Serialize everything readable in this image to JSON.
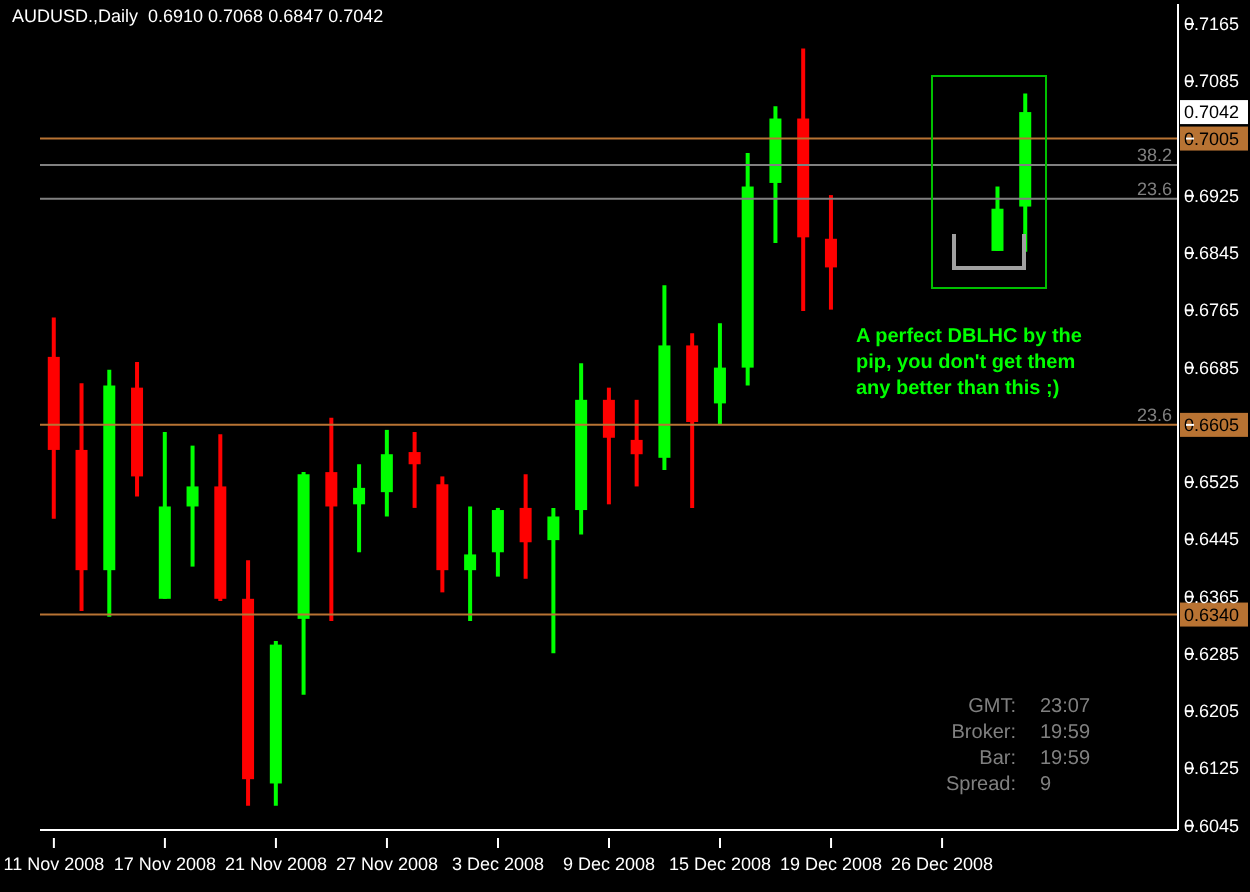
{
  "chart_data": {
    "type": "candlestick",
    "title": "AUDUSD.,Daily  0.6910 0.7068 0.6847 0.7042",
    "categories": [
      "11 Nov 2008",
      null,
      null,
      null,
      "17 Nov 2008",
      null,
      null,
      null,
      "21 Nov 2008",
      null,
      null,
      null,
      "27 Nov 2008",
      null,
      null,
      null,
      "3 Dec 2008",
      null,
      null,
      null,
      "9 Dec 2008",
      null,
      null,
      null,
      "15 Dec 2008",
      null,
      null,
      null,
      "19 Dec 2008",
      null,
      null,
      null,
      "26 Dec 2008",
      null,
      null,
      null,
      null,
      null,
      null,
      null,
      null
    ],
    "ohlc": [
      [
        0.67,
        0.6755,
        0.6474,
        0.657
      ],
      [
        0.657,
        0.6663,
        0.6345,
        0.6402
      ],
      [
        0.6402,
        0.6682,
        0.6337,
        0.666
      ],
      [
        0.6657,
        0.6693,
        0.6505,
        0.6533
      ],
      [
        0.6362,
        0.6595,
        0.6362,
        0.6491
      ],
      [
        0.6491,
        0.6576,
        0.6407,
        0.6519
      ],
      [
        0.6519,
        0.6592,
        0.6359,
        0.6362
      ],
      [
        0.6362,
        0.6416,
        0.6073,
        0.611
      ],
      [
        0.6104,
        0.6303,
        0.6073,
        0.6298
      ],
      [
        0.6334,
        0.6539,
        0.6228,
        0.6536
      ],
      [
        0.6539,
        0.6615,
        0.6331,
        0.6491
      ],
      [
        0.6494,
        0.655,
        0.6427,
        0.6517
      ],
      [
        0.6511,
        0.6598,
        0.6477,
        0.6564
      ],
      [
        0.6567,
        0.6595,
        0.6489,
        0.655
      ],
      [
        0.6522,
        0.6533,
        0.6371,
        0.6402
      ],
      [
        0.6402,
        0.6491,
        0.6331,
        0.6424
      ],
      [
        0.6427,
        0.6489,
        0.6393,
        0.6486
      ],
      [
        0.6489,
        0.6536,
        0.639,
        0.6441
      ],
      [
        0.6444,
        0.6489,
        0.6286,
        0.6477
      ],
      [
        0.6486,
        0.6691,
        0.6452,
        0.664
      ],
      [
        0.664,
        0.6657,
        0.6494,
        0.6587
      ],
      [
        0.6584,
        0.664,
        0.6519,
        0.6564
      ],
      [
        0.6559,
        0.68,
        0.6542,
        0.6716
      ],
      [
        0.6716,
        0.6733,
        0.6489,
        0.6609
      ],
      [
        0.6635,
        0.6747,
        0.6606,
        0.6685
      ],
      [
        0.6685,
        0.6985,
        0.666,
        0.6938
      ],
      [
        0.6943,
        0.705,
        0.6859,
        0.7033
      ],
      [
        0.7033,
        0.7131,
        0.6764,
        0.6867
      ],
      [
        0.6865,
        0.6926,
        0.6766,
        0.6825
      ],
      null,
      null,
      null,
      null,
      null,
      [
        0.6848,
        0.6938,
        0.6848,
        0.6907
      ],
      [
        0.691,
        0.7068,
        0.6847,
        0.7042
      ],
      null,
      null,
      null,
      null,
      null
    ],
    "colors": [
      "#ff0000",
      "#ff0000",
      "#00ff00",
      "#ff0000",
      "#00ff00",
      "#00ff00",
      "#ff0000",
      "#ff0000",
      "#00ff00",
      "#00ff00",
      "#ff0000",
      "#00ff00",
      "#00ff00",
      "#ff0000",
      "#ff0000",
      "#00ff00",
      "#00ff00",
      "#ff0000",
      "#00ff00",
      "#00ff00",
      "#ff0000",
      "#ff0000",
      "#00ff00",
      "#ff0000",
      "#00ff00",
      "#00ff00",
      "#00ff00",
      "#ff0000",
      "#ff0000",
      null,
      null,
      null,
      null,
      null,
      "#00ff00",
      "#00ff00",
      null,
      null,
      null,
      null,
      null
    ],
    "ylim": [
      0.6039,
      0.7193
    ],
    "yticks": [
      0.6045,
      0.6125,
      0.6205,
      0.6285,
      0.6365,
      0.6445,
      0.6525,
      0.6605,
      0.6685,
      0.6765,
      0.6845,
      0.6925,
      0.7005,
      0.7085,
      0.7165
    ],
    "ref_lines": [
      {
        "axis": "y",
        "value": 0.7005,
        "label": "0.7005",
        "color": "#b87333"
      },
      {
        "axis": "y",
        "value": 0.6968,
        "color": "#808080"
      },
      {
        "axis": "y",
        "value": 0.6921,
        "color": "#808080"
      },
      {
        "axis": "y",
        "value": 0.6605,
        "label": "0.6605",
        "color": "#b87333"
      },
      {
        "axis": "y",
        "value": 0.634,
        "label": "0.6340",
        "color": "#b87333"
      }
    ],
    "annotations": [
      {
        "text": "0.7042",
        "y": 0.7042
      },
      {
        "text": "38.2",
        "y": 0.6968
      },
      {
        "text": "23.6",
        "y": 0.6921
      },
      {
        "text": "23.6",
        "y": 0.6605
      },
      "A perfect DBLHC by the pip, you don't get them any better than this ;)",
      "GMT:",
      "23:07",
      "Broker:",
      "19:59",
      "Bar:",
      "19:59",
      "Spread:",
      "9"
    ]
  }
}
